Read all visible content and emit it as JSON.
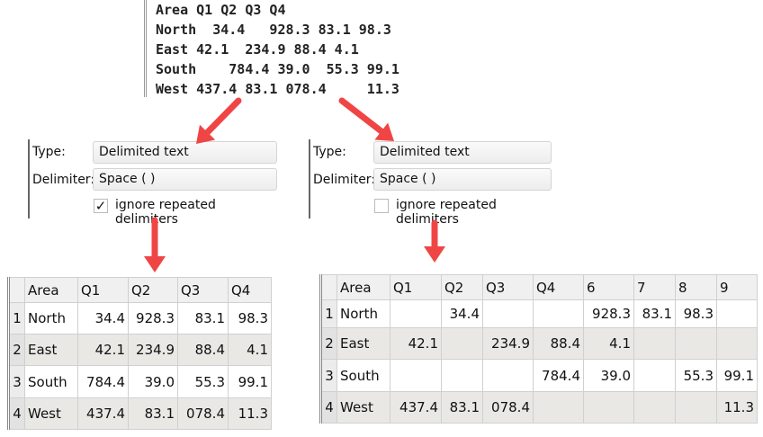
{
  "raw_text": {
    "lines": [
      "Area Q1 Q2 Q3 Q4",
      "North  34.4   928.3 83.1 98.3",
      "East 42.1  234.9 88.4 4.1",
      "South    784.4 39.0  55.3 99.1",
      "West 437.4 83.1 078.4     11.3"
    ]
  },
  "left_panel": {
    "type_label": "Type:",
    "type_value": "Delimited text",
    "delimiter_label": "Delimiter:",
    "delimiter_value": "Space ( )",
    "ignore_repeated_label": "ignore repeated delimiters",
    "ignore_repeated_checked": true,
    "checkmark": "✓",
    "table": {
      "headers": [
        "",
        "Area",
        "Q1",
        "Q2",
        "Q3",
        "Q4"
      ],
      "rows": [
        [
          "1",
          "North",
          "34.4",
          "928.3",
          "83.1",
          "98.3"
        ],
        [
          "2",
          "East",
          "42.1",
          "234.9",
          "88.4",
          "4.1"
        ],
        [
          "3",
          "South",
          "784.4",
          "39.0",
          "55.3",
          "99.1"
        ],
        [
          "4",
          "West",
          "437.4",
          "83.1",
          "078.4",
          "11.3"
        ]
      ]
    }
  },
  "right_panel": {
    "type_label": "Type:",
    "type_value": "Delimited text",
    "delimiter_label": "Delimiter:",
    "delimiter_value": "Space ( )",
    "ignore_repeated_label": "ignore repeated delimiters",
    "ignore_repeated_checked": false,
    "table": {
      "headers": [
        "",
        "Area",
        "Q1",
        "Q2",
        "Q3",
        "Q4",
        "6",
        "7",
        "8",
        "9"
      ],
      "rows": [
        [
          "1",
          "North",
          "",
          "34.4",
          "",
          "",
          "928.3",
          "83.1",
          "98.3",
          ""
        ],
        [
          "2",
          "East",
          "42.1",
          "",
          "234.9",
          "88.4",
          "4.1",
          "",
          "",
          ""
        ],
        [
          "3",
          "South",
          "",
          "",
          "",
          "784.4",
          "39.0",
          "",
          "55.3",
          "99.1"
        ],
        [
          "4",
          "West",
          "437.4",
          "83.1",
          "078.4",
          "",
          "",
          "",
          "",
          "11.3"
        ]
      ]
    }
  },
  "colors": {
    "arrow": "#f04545",
    "alt_row": "#e9e8e5"
  }
}
